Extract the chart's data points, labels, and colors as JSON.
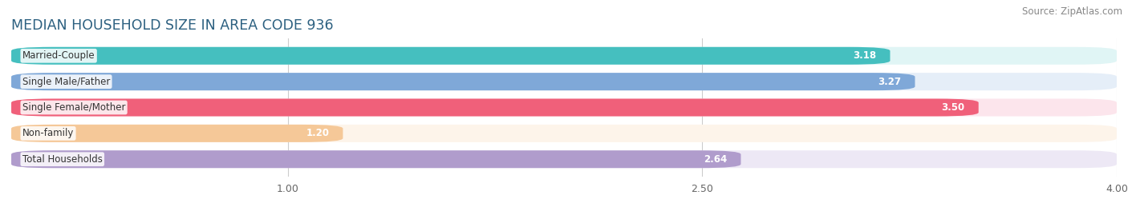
{
  "title": "MEDIAN HOUSEHOLD SIZE IN AREA CODE 936",
  "source": "Source: ZipAtlas.com",
  "categories": [
    "Married-Couple",
    "Single Male/Father",
    "Single Female/Mother",
    "Non-family",
    "Total Households"
  ],
  "values": [
    3.18,
    3.27,
    3.5,
    1.2,
    2.64
  ],
  "bar_colors": [
    "#45bfbf",
    "#7fa8d8",
    "#f0607a",
    "#f5c898",
    "#b09ccc"
  ],
  "bar_bg_colors": [
    "#e0f5f5",
    "#e5eef8",
    "#fce5ec",
    "#fdf4ea",
    "#ede8f5"
  ],
  "xlim_min": 0.0,
  "xlim_max": 4.0,
  "xticks": [
    1.0,
    2.5,
    4.0
  ],
  "title_color": "#2c6080",
  "title_fontsize": 12.5,
  "source_fontsize": 8.5,
  "label_fontsize": 8.5,
  "value_fontsize": 8.5,
  "bar_height": 0.68,
  "bar_gap": 0.32,
  "figsize": [
    14.06,
    2.69
  ],
  "dpi": 100,
  "bg_color": "#f7f7f7"
}
